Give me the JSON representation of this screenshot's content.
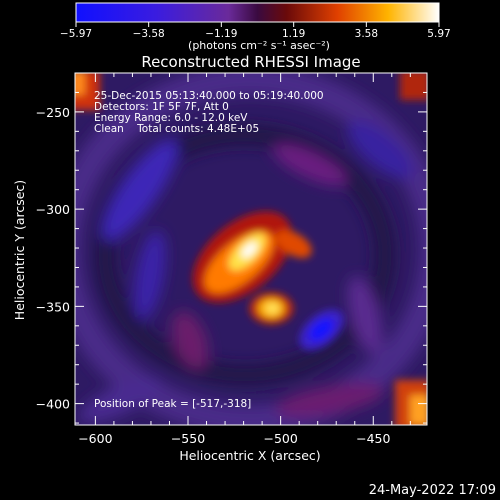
{
  "chart_data": {
    "type": "heatmap",
    "title": "Reconstructed RHESSI Image",
    "xlabel": "Heliocentric X (arcsec)",
    "ylabel": "Heliocentric Y (arcsec)",
    "xlim": [
      -611,
      -421
    ],
    "ylim": [
      -411,
      -230
    ],
    "x_ticks": [
      -600,
      -550,
      -500,
      -450
    ],
    "y_ticks": [
      -250,
      -300,
      -350,
      -400
    ],
    "x_tick_labels": [
      "−600",
      "−550",
      "−500",
      "−450"
    ],
    "y_tick_labels": [
      "−250",
      "−300",
      "−350",
      "−400"
    ],
    "colorbar": {
      "min": -5.97,
      "max": 5.97,
      "tick_labels": [
        "−5.97",
        "−3.58",
        "−1.19",
        "1.19",
        "3.58",
        "5.97"
      ],
      "tick_values": [
        -5.97,
        -3.58,
        -1.19,
        1.19,
        3.58,
        5.97
      ],
      "unit_label": "(photons cm⁻² s⁻¹ asec⁻²)"
    },
    "annotations": [
      "25-Dec-2015 05:13:40.000 to 05:19:40.000",
      "Detectors: 1F 5F 7F, Att 0",
      "Energy Range: 6.0 - 12.0 keV",
      "Clean    Total counts: 4.48E+05"
    ],
    "peak_label": "Position of Peak = [-517,-318]",
    "peak": [
      -517,
      -318
    ],
    "sources": [
      {
        "x": -518,
        "y": -322,
        "value": 5.9
      },
      {
        "x": -505,
        "y": -351,
        "value": 4.6
      },
      {
        "x": -478,
        "y": -362,
        "value": -5.0
      }
    ]
  },
  "footer": {
    "date": "24-May-2022 17:09"
  },
  "colors": {
    "background": "#000000",
    "text": "#ffffff"
  }
}
